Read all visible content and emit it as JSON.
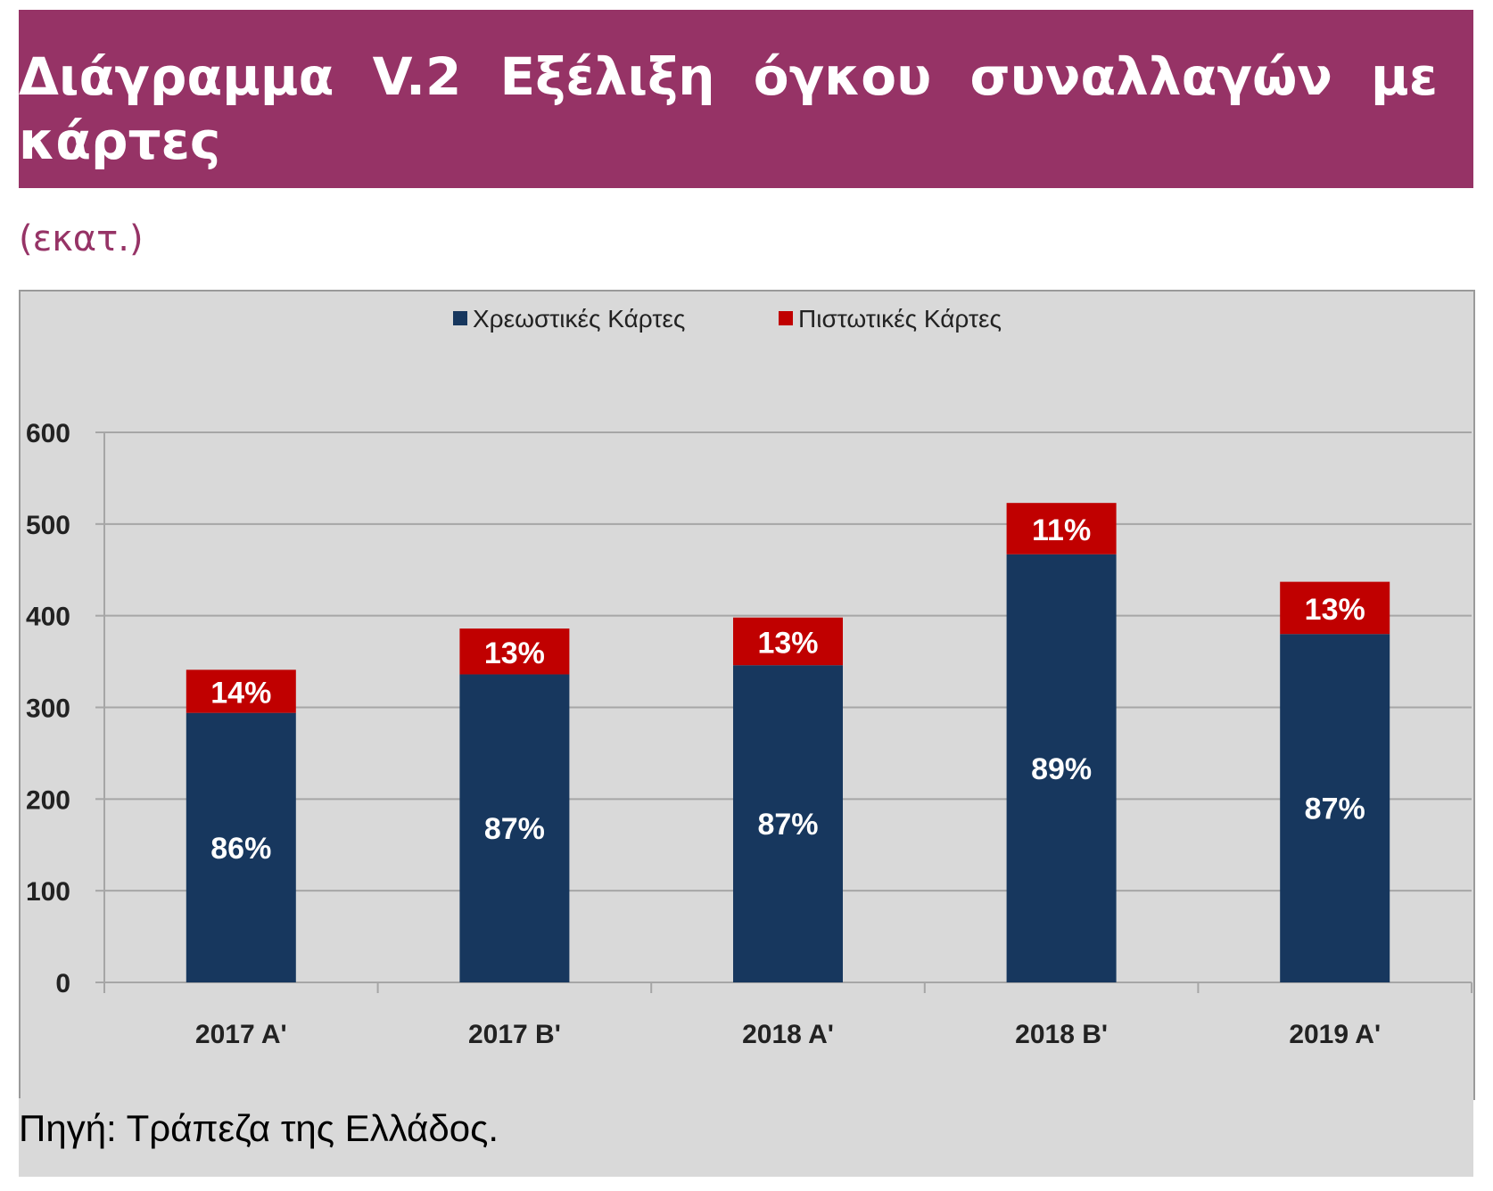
{
  "header": {
    "title_line1": "Διάγραμμα V.2 Εξέλιξη όγκου συναλλαγών με",
    "title_line2": "κάρτες"
  },
  "unit": "(εκατ.)",
  "source": "Πηγή: Τράπεζα της Ελλάδος.",
  "colors": {
    "debit": "#17375e",
    "credit": "#c00000",
    "title_bg": "#963366"
  },
  "chart_data": {
    "type": "bar",
    "stacked": true,
    "title": "Διάγραμμα V.2 Εξέλιξη όγκου συναλλαγών με κάρτες",
    "ylabel": "(εκατ.)",
    "ylim": [
      0,
      600
    ],
    "yticks": [
      0,
      100,
      200,
      300,
      400,
      500,
      600
    ],
    "grid": true,
    "legend": "top-center",
    "categories": [
      "2017 A'",
      "2017 B'",
      "2018 A'",
      "2018 B'",
      "2019 A'"
    ],
    "series": [
      {
        "name": "Χρεωστικές Κάρτες",
        "values": [
          294,
          336,
          346,
          467,
          380
        ],
        "labels": [
          "86%",
          "87%",
          "87%",
          "89%",
          "87%"
        ]
      },
      {
        "name": "Πιστωτικές Κάρτες",
        "values": [
          47,
          50,
          52,
          56,
          57
        ],
        "labels": [
          "14%",
          "13%",
          "13%",
          "11%",
          "13%"
        ]
      }
    ]
  }
}
